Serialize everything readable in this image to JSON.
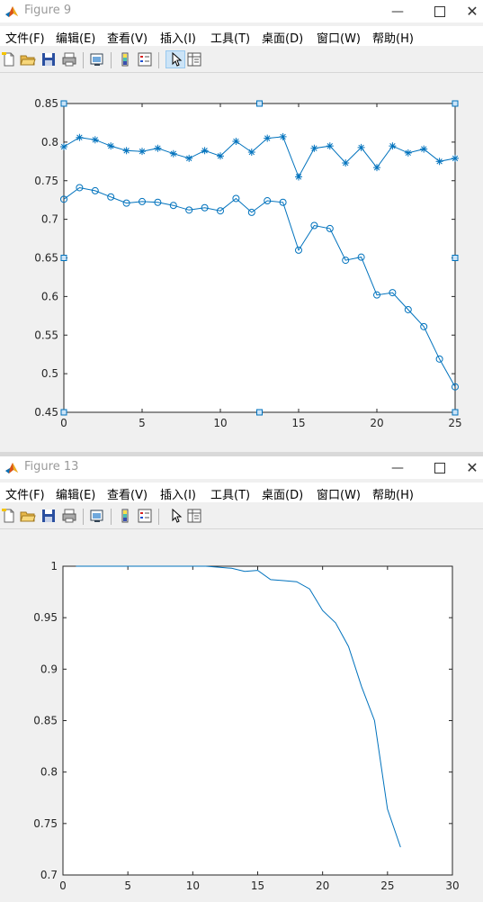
{
  "windows": [
    {
      "title": "Figure 9",
      "menu": [
        "文件(F)",
        "编辑(E)",
        "查看(V)",
        "插入(I)",
        "工具(T)",
        "桌面(D)",
        "窗口(W)",
        "帮助(H)"
      ],
      "window_controls": [
        "minimize-icon",
        "maximize-icon",
        "close-icon"
      ]
    },
    {
      "title": "Figure 13",
      "menu": [
        "文件(F)",
        "编辑(E)",
        "查看(V)",
        "插入(I)",
        "工具(T)",
        "桌面(D)",
        "窗口(W)",
        "帮助(H)"
      ],
      "window_controls": [
        "minimize-icon",
        "maximize-icon",
        "close-icon"
      ]
    }
  ],
  "toolbar_icons": [
    "new-figure-icon",
    "open-file-icon",
    "save-icon",
    "print-icon",
    "link-plot-icon",
    "colorbar-icon",
    "legend-icon",
    "edit-plot-arrow-icon",
    "property-inspector-icon"
  ],
  "colors": {
    "line": "#0072bd",
    "selection_handle": "#0072bd"
  },
  "chart_data": [
    {
      "type": "line",
      "xlim": [
        0,
        25
      ],
      "ylim": [
        0.45,
        0.85
      ],
      "xticks": [
        0,
        5,
        10,
        15,
        20,
        25
      ],
      "yticks": [
        0.45,
        0.5,
        0.55,
        0.6,
        0.65,
        0.7,
        0.75,
        0.8,
        0.85
      ],
      "ytick_labels": [
        "0.45",
        "0.5",
        "0.55",
        "0.6",
        "0.65",
        "0.7",
        "0.75",
        "0.8",
        "0.85"
      ],
      "grid": false,
      "axes_selected": true,
      "series": [
        {
          "marker": "asterisk",
          "x": [
            0,
            1,
            2,
            3,
            4,
            5,
            6,
            7,
            8,
            9,
            10,
            11,
            12,
            13,
            14,
            15,
            16,
            17,
            18,
            19,
            20,
            21,
            22,
            23,
            24,
            25
          ],
          "values": [
            0.794,
            0.806,
            0.803,
            0.795,
            0.789,
            0.788,
            0.792,
            0.785,
            0.779,
            0.789,
            0.782,
            0.801,
            0.787,
            0.805,
            0.807,
            0.755,
            0.792,
            0.795,
            0.773,
            0.793,
            0.767,
            0.795,
            0.786,
            0.791,
            0.775,
            0.779
          ]
        },
        {
          "marker": "circle",
          "x": [
            0,
            1,
            2,
            3,
            4,
            5,
            6,
            7,
            8,
            9,
            10,
            11,
            12,
            13,
            14,
            15,
            16,
            17,
            18,
            19,
            20,
            21,
            22,
            23,
            24,
            25
          ],
          "values": [
            0.726,
            0.741,
            0.737,
            0.729,
            0.721,
            0.723,
            0.722,
            0.718,
            0.712,
            0.715,
            0.711,
            0.727,
            0.709,
            0.724,
            0.722,
            0.66,
            0.692,
            0.688,
            0.647,
            0.651,
            0.602,
            0.605,
            0.583,
            0.561,
            0.519,
            0.483
          ]
        }
      ]
    },
    {
      "type": "line",
      "xlim": [
        0,
        30
      ],
      "ylim": [
        0.7,
        1
      ],
      "xticks": [
        0,
        5,
        10,
        15,
        20,
        25,
        30
      ],
      "yticks": [
        0.7,
        0.75,
        0.8,
        0.85,
        0.9,
        0.95,
        1
      ],
      "ytick_labels": [
        "0.7",
        "0.75",
        "0.8",
        "0.85",
        "0.9",
        "0.95",
        "1"
      ],
      "grid": false,
      "axes_selected": false,
      "series": [
        {
          "marker": "none",
          "x": [
            1,
            2,
            3,
            4,
            5,
            6,
            7,
            8,
            9,
            10,
            11,
            12,
            13,
            14,
            15,
            16,
            17,
            18,
            19,
            20,
            21,
            22,
            23,
            24,
            25,
            26
          ],
          "values": [
            1.0,
            1.0,
            1.0,
            1.0,
            1.0,
            1.0,
            1.0,
            1.0,
            1.0,
            1.0,
            1.0,
            0.999,
            0.998,
            0.995,
            0.996,
            0.987,
            0.986,
            0.985,
            0.978,
            0.957,
            0.945,
            0.922,
            0.883,
            0.85,
            0.764,
            0.727
          ]
        }
      ]
    }
  ]
}
